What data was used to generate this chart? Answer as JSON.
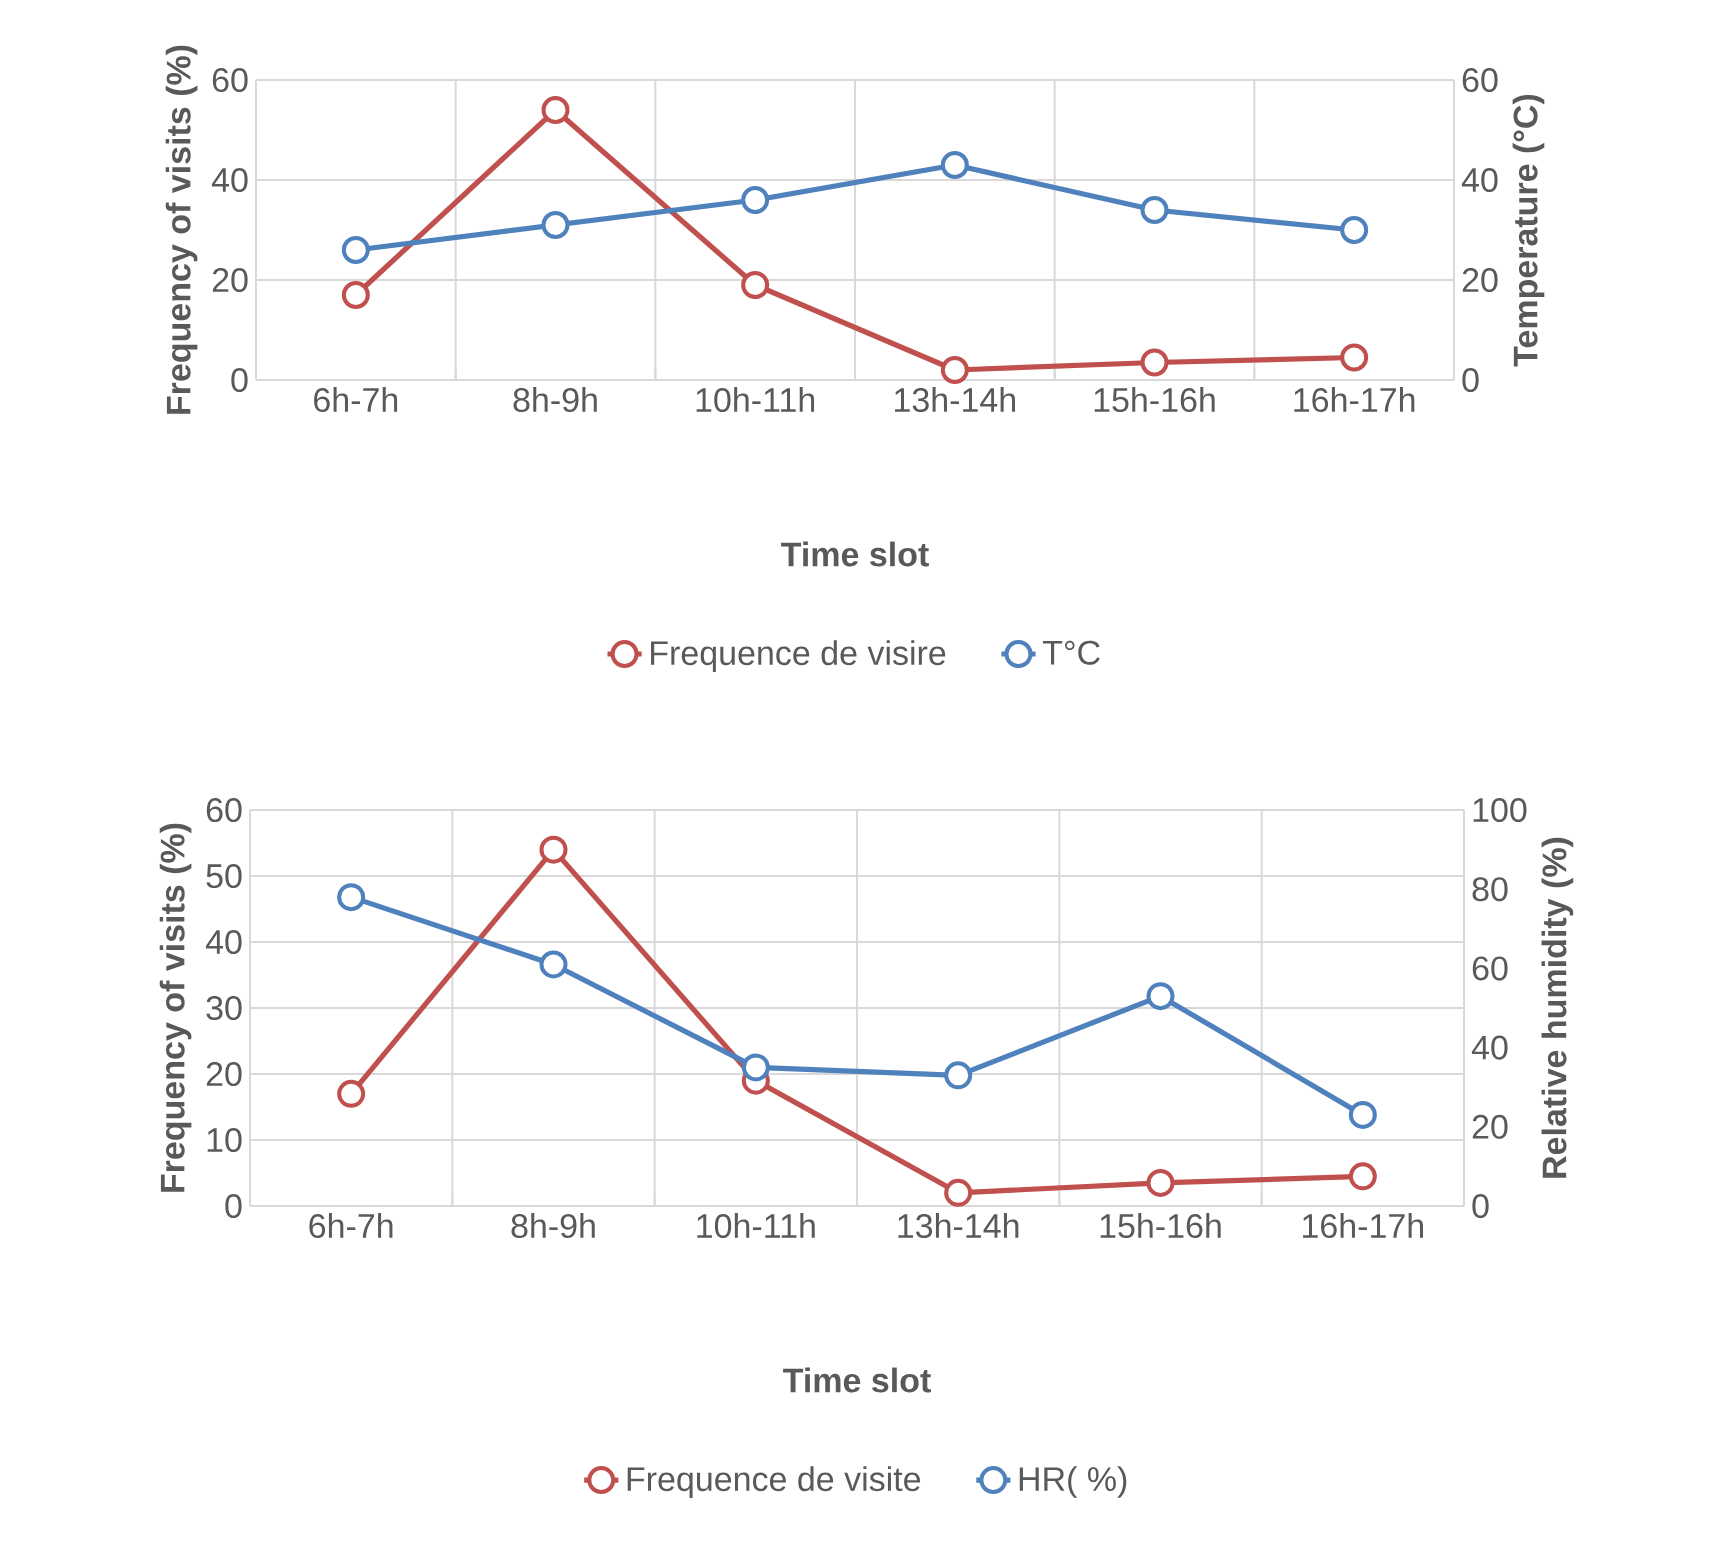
{
  "chart_data": [
    {
      "type": "line",
      "xlabel": "Time slot",
      "ylabel": "Frequency of visits (%)",
      "y2label": "Temperature (°C)",
      "categories": [
        "6h-7h",
        "8h-9h",
        "10h-11h",
        "13h-14h",
        "15h-16h",
        "16h-17h"
      ],
      "series": [
        {
          "name": "Frequence de visire",
          "color": "#c0504d",
          "values": [
            17,
            54,
            19,
            2,
            3.5,
            4.5
          ]
        },
        {
          "name": "T°C",
          "color": "#4f81bd",
          "axis": "y2",
          "values": [
            26,
            31,
            36,
            43,
            34,
            30
          ]
        }
      ],
      "ylim": [
        0,
        60
      ],
      "yticks": [
        0,
        20,
        40,
        60
      ],
      "y2lim": [
        0,
        60
      ],
      "y2ticks": [
        0,
        20,
        40,
        60
      ],
      "grid": true,
      "legend": "bottom",
      "marker": "circle"
    },
    {
      "type": "line",
      "xlabel": "Time slot",
      "ylabel": "Frequency of visits (%)",
      "y2label": "Relative humidity (%)",
      "categories": [
        "6h-7h",
        "8h-9h",
        "10h-11h",
        "13h-14h",
        "15h-16h",
        "16h-17h"
      ],
      "series": [
        {
          "name": "Frequence de visite",
          "color": "#c0504d",
          "values": [
            17,
            54,
            19,
            2,
            3.5,
            4.5
          ]
        },
        {
          "name": "HR( %)",
          "color": "#4f81bd",
          "axis": "y2",
          "values": [
            78,
            61,
            35,
            33,
            53,
            23
          ]
        }
      ],
      "ylim": [
        0,
        60
      ],
      "yticks": [
        0,
        10,
        20,
        30,
        40,
        50,
        60
      ],
      "y2lim": [
        0,
        100
      ],
      "y2ticks": [
        0,
        20,
        40,
        60,
        80,
        100
      ],
      "grid": true,
      "legend": "bottom",
      "marker": "circle"
    }
  ]
}
